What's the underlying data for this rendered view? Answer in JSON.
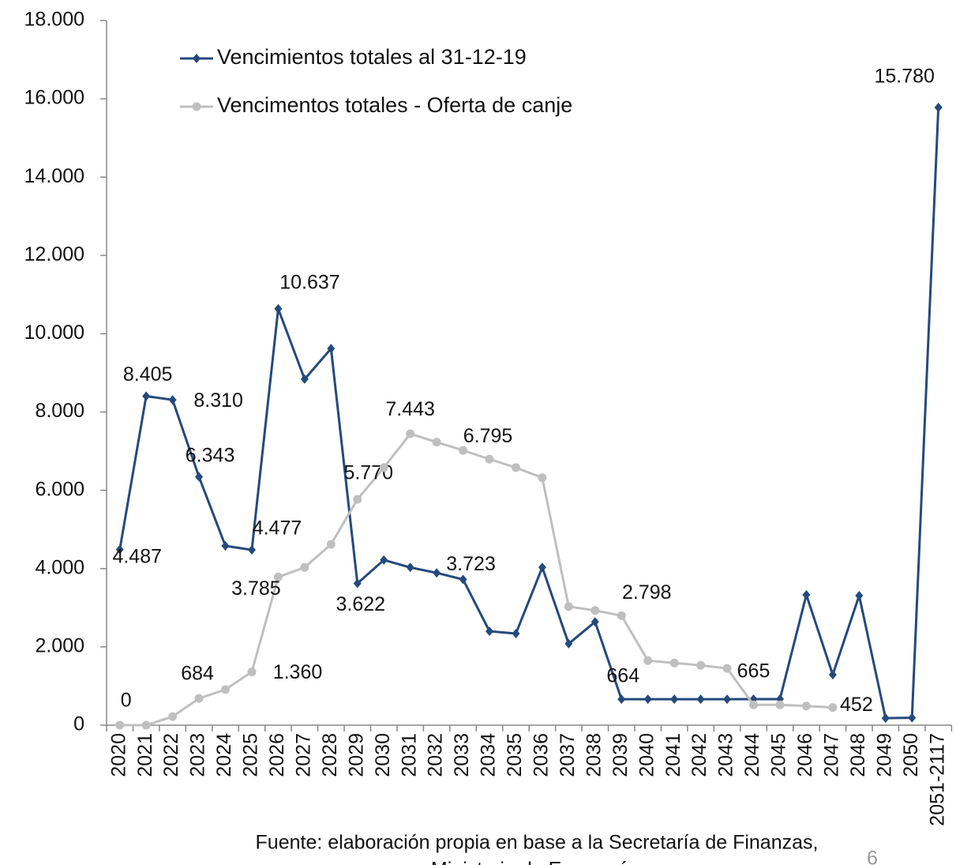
{
  "chart_data": {
    "type": "line",
    "categories": [
      "2020",
      "2021",
      "2022",
      "2023",
      "2024",
      "2025",
      "2026",
      "2027",
      "2028",
      "2029",
      "2030",
      "2031",
      "2032",
      "2033",
      "2034",
      "2035",
      "2036",
      "2037",
      "2038",
      "2039",
      "2040",
      "2041",
      "2042",
      "2043",
      "2044",
      "2045",
      "2046",
      "2047",
      "2048",
      "2049",
      "2050",
      "2051-2117"
    ],
    "series": [
      {
        "name": "Vencimientos totales al 31-12-19",
        "color": "#244a7c",
        "marker": "diamond",
        "values": [
          4487,
          8405,
          8310,
          6343,
          4580,
          4477,
          10637,
          8840,
          9620,
          3622,
          4220,
          4030,
          3890,
          3723,
          2400,
          2340,
          4030,
          2080,
          2640,
          664,
          664,
          664,
          664,
          664,
          665,
          665,
          3330,
          1290,
          3310,
          180,
          190,
          15780
        ],
        "value_labels": [
          "4.487",
          "8.405",
          "8.310",
          "6.343",
          null,
          "4.477",
          "10.637",
          null,
          null,
          "3.622",
          null,
          null,
          null,
          "3.723",
          null,
          null,
          null,
          null,
          null,
          "664",
          null,
          null,
          null,
          null,
          "665",
          null,
          null,
          null,
          null,
          null,
          null,
          "15.780"
        ]
      },
      {
        "name": "Vencimentos totales - Oferta de canje",
        "color": "#bfbfbf",
        "marker": "circle",
        "values": [
          0,
          0,
          220,
          684,
          910,
          1360,
          3785,
          4030,
          4620,
          5770,
          6580,
          7443,
          7230,
          7020,
          6795,
          6580,
          6320,
          3030,
          2930,
          2798,
          1650,
          1590,
          1530,
          1450,
          520,
          520,
          490,
          452,
          null,
          null,
          null,
          null
        ],
        "value_labels": [
          "0",
          null,
          null,
          "684",
          null,
          "1.360",
          "3.785",
          null,
          null,
          "5.770",
          null,
          "7.443",
          null,
          null,
          "6.795",
          null,
          null,
          null,
          null,
          "2.798",
          null,
          null,
          null,
          null,
          null,
          null,
          null,
          "452",
          null,
          null,
          null,
          null
        ]
      }
    ],
    "ylim": [
      0,
      18000
    ],
    "yticks": [
      0,
      {
        "value": 2000,
        "label": "2.000"
      },
      {
        "value": 4000,
        "label": "4.000"
      },
      {
        "value": 6000,
        "label": "6.000"
      },
      {
        "value": 8000,
        "label": "8.000"
      },
      {
        "value": 10000,
        "label": "10.000"
      },
      {
        "value": 12000,
        "label": "12.000"
      },
      {
        "value": 14000,
        "label": "14.000"
      },
      {
        "value": 16000,
        "label": "16.000"
      },
      {
        "value": 18000,
        "label": "18.000"
      }
    ],
    "legend": "top-left",
    "source": [
      "Fuente: elaboración propia en base a la Secretaría de Finanzas,",
      "Ministerio de Economía."
    ],
    "page_number": "6"
  }
}
